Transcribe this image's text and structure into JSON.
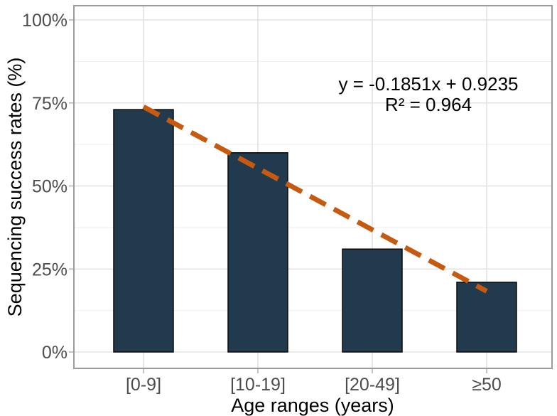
{
  "chart_data": {
    "type": "bar",
    "title": "",
    "categories": [
      "[0-9]",
      "[10-19]",
      "[20-49]",
      "≥50"
    ],
    "values": [
      73,
      60,
      31,
      21
    ],
    "xlabel": "Age ranges (years)",
    "ylabel": "Sequencing success rates (%)",
    "ylim": [
      0,
      100
    ],
    "y_ticks": [
      0,
      25,
      50,
      75,
      100
    ],
    "y_tick_labels": [
      "0%",
      "25%",
      "50%",
      "75%",
      "100%"
    ],
    "y_minor_ticks": [
      12.5,
      37.5,
      62.5,
      87.5
    ],
    "grid": "horizontal major+minor, vertical major at category centers",
    "legend": "none",
    "trendline": {
      "type": "linear",
      "slope": -0.1851,
      "intercept": 0.9235,
      "x_domain": [
        1,
        4
      ],
      "equation_label": "y = -0.1851x + 0.9235",
      "r_squared_label": "R² = 0.964",
      "style": "dashed"
    },
    "colors": {
      "bar_fill": "#223a4e",
      "bar_stroke": "#0a0a0a",
      "trendline": "#c65a11",
      "grid_major": "#e2e2e2",
      "grid_minor": "#f1f1f1",
      "panel_border": "#9b9b9b",
      "axis_tick": "#b5b5b5",
      "tick_label_color": "#4d4d4d",
      "axis_title_color": "#000000",
      "background": "#ffffff"
    }
  }
}
